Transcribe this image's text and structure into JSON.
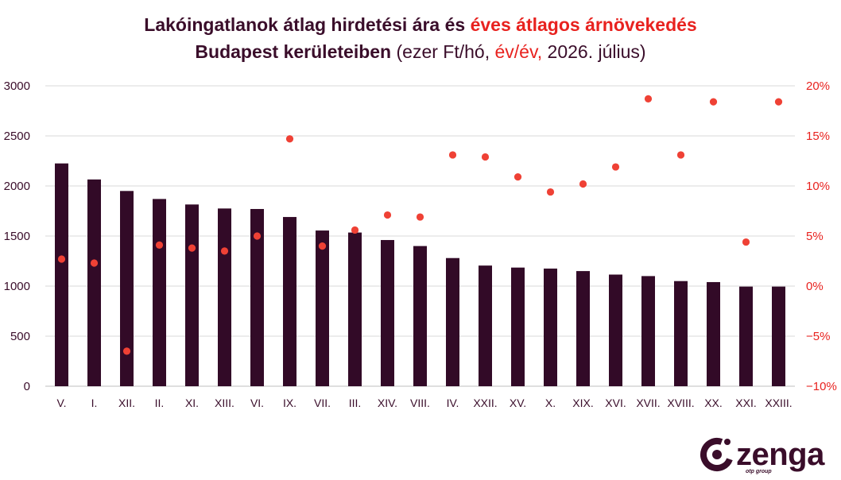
{
  "title": {
    "line1_part1": "Lakóingatlanok átlag hirdetési ára és ",
    "line1_part2_red": "éves átlagos árnövekedés",
    "line2_bold": "Budapest kerületeiben",
    "line2_sub_open": " (ezer Ft/hó, ",
    "line2_sub_red": "év/év,",
    "line2_sub_close": " 2026. július)"
  },
  "logo": {
    "word": "zenga",
    "sub": "otp group"
  },
  "colors": {
    "bar": "#320a27",
    "dot": "#ef4135",
    "text": "#3a0d2a",
    "red_text": "#e8221f",
    "grid": "#d9d9d9"
  },
  "chart_data": {
    "type": "bar+scatter",
    "categories": [
      "V.",
      "I.",
      "XII.",
      "II.",
      "XI.",
      "XIII.",
      "VI.",
      "IX.",
      "VII.",
      "III.",
      "XIV.",
      "VIII.",
      "IV.",
      "XXII.",
      "XV.",
      "X.",
      "XIX.",
      "XVI.",
      "XVII.",
      "XVIII.",
      "XX.",
      "XXI.",
      "XXIII."
    ],
    "bar_values": [
      2225,
      2065,
      1950,
      1870,
      1815,
      1775,
      1770,
      1690,
      1555,
      1535,
      1460,
      1400,
      1280,
      1205,
      1185,
      1175,
      1150,
      1115,
      1100,
      1050,
      1040,
      995,
      995
    ],
    "dot_values": [
      2.7,
      2.3,
      -6.5,
      4.1,
      3.8,
      3.5,
      5.0,
      14.7,
      4.0,
      5.6,
      7.1,
      6.9,
      13.1,
      12.9,
      10.9,
      9.4,
      10.2,
      11.9,
      18.7,
      13.1,
      18.4,
      4.4,
      18.4
    ],
    "y_left": {
      "min": 0,
      "max": 3000,
      "ticks": [
        "0",
        "500",
        "1000",
        "1500",
        "2000",
        "2500",
        "3000"
      ]
    },
    "y_right": {
      "min": -10,
      "max": 20,
      "ticks": [
        "−10%",
        "−5%",
        "0%",
        "5%",
        "10%",
        "15%",
        "20%"
      ]
    },
    "grid": true
  }
}
